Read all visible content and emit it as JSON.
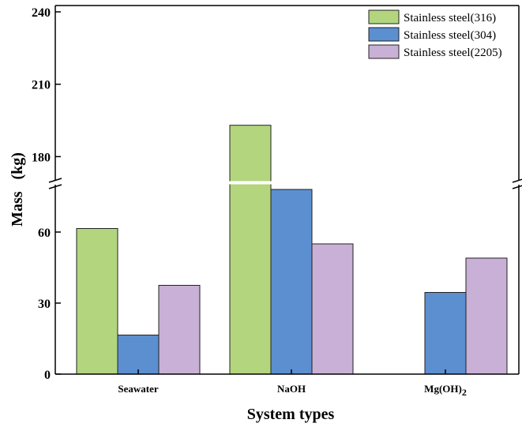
{
  "chart_data": {
    "type": "bar",
    "title": "",
    "xlabel": "System types",
    "ylabel": "Mass   (kg)",
    "categories": [
      "Seawater",
      "NaOH",
      "Mg(OH)"
    ],
    "category_subscripts": [
      "",
      "",
      "2"
    ],
    "series": [
      {
        "name": "Stainless steel(316)",
        "color": "#b3d57e",
        "values": [
          61.5,
          193,
          null
        ]
      },
      {
        "name": "Stainless steel(304)",
        "color": "#5b8fd0",
        "values": [
          16.5,
          78,
          34.5
        ]
      },
      {
        "name": "Stainless steel(2205)",
        "color": "#c9b0d6",
        "values": [
          37.5,
          55,
          49
        ]
      }
    ],
    "y_axis_break": {
      "lower_range": [
        0,
        80
      ],
      "upper_range": [
        170,
        240
      ]
    },
    "yticks_lower": [
      "0",
      "30",
      "60"
    ],
    "yticks_upper": [
      "180",
      "210",
      "240"
    ],
    "legend_position": "top-right",
    "grid": false
  }
}
